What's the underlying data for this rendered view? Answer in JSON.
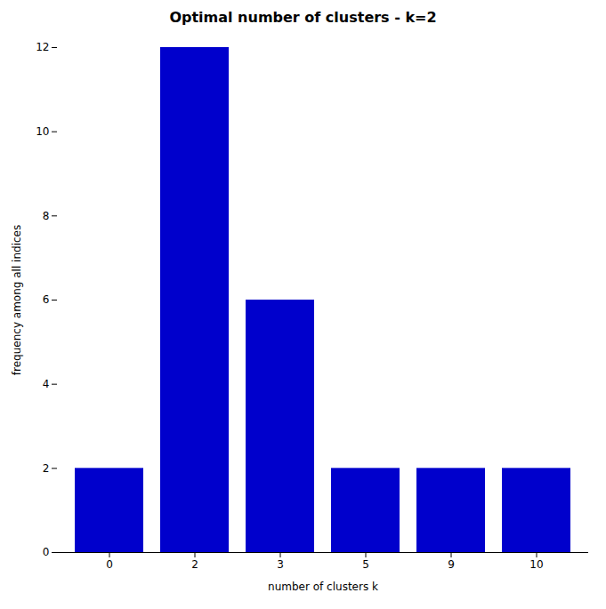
{
  "chart_data": {
    "type": "bar",
    "title": "Optimal number of clusters - k=2",
    "xlabel": "number of clusters k",
    "ylabel": "frequency among all indices",
    "categories": [
      "0",
      "2",
      "3",
      "5",
      "9",
      "10"
    ],
    "values": [
      2,
      12,
      6,
      2,
      2,
      2
    ],
    "color": "#0000CC",
    "ylim": [
      0,
      12
    ],
    "yticks": [
      0,
      2,
      4,
      6,
      8,
      10,
      12
    ],
    "grid": false
  }
}
